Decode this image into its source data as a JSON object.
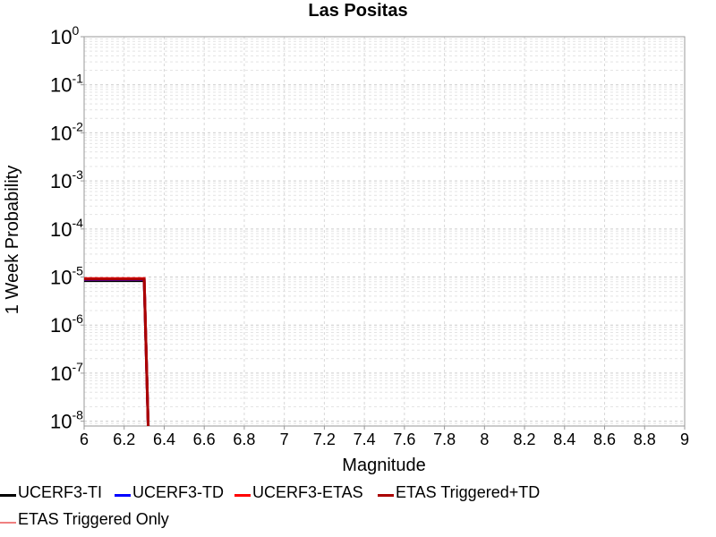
{
  "chart_data": {
    "type": "line",
    "title": "Las Positas",
    "xlabel": "Magnitude",
    "ylabel": "1 Week Probability",
    "xlim": [
      6,
      9
    ],
    "ylim_log10": [
      -8.1,
      0
    ],
    "y_scale": "log",
    "grid": true,
    "x_ticks": [
      "6",
      "6.2",
      "6.4",
      "6.6",
      "6.8",
      "7",
      "7.2",
      "7.4",
      "7.6",
      "7.8",
      "8",
      "8.2",
      "8.4",
      "8.6",
      "8.8",
      "9"
    ],
    "y_tick_exponents": [
      "0",
      "-1",
      "-2",
      "-3",
      "-4",
      "-5",
      "-6",
      "-7",
      "-8"
    ],
    "y_tick_base": "10",
    "legend_position": "bottom",
    "series": [
      {
        "name": "UCERF3-TI",
        "color": "#000000",
        "points": [
          [
            6.0,
            8.4e-06
          ],
          [
            6.3,
            8.4e-06
          ],
          [
            6.32,
            1e-09
          ]
        ]
      },
      {
        "name": "UCERF3-TD",
        "color": "#0000ff",
        "points": [
          [
            6.0,
            8.8e-06
          ],
          [
            6.3,
            8.8e-06
          ],
          [
            6.32,
            1e-09
          ]
        ]
      },
      {
        "name": "UCERF3-ETAS",
        "color": "#ff0000",
        "points": [
          [
            6.0,
            9.3e-06
          ],
          [
            6.3,
            9.3e-06
          ],
          [
            6.32,
            1e-09
          ]
        ]
      },
      {
        "name": "ETAS Triggered+TD",
        "color": "#aa0000",
        "points": [
          [
            6.0,
            9e-06
          ],
          [
            6.3,
            9e-06
          ],
          [
            6.32,
            1e-09
          ]
        ]
      },
      {
        "name": "ETAS Triggered Only",
        "color": "#f08080",
        "points": []
      }
    ]
  }
}
